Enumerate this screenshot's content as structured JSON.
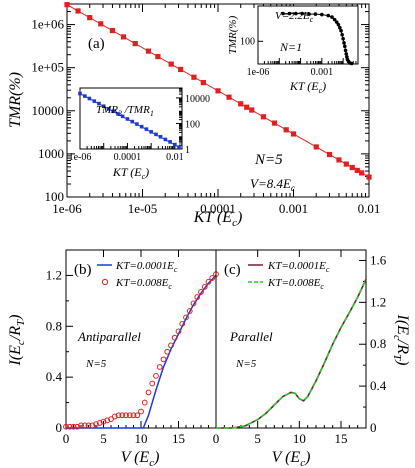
{
  "chart_data": [
    {
      "panel": "(a)",
      "type": "scatter",
      "xscale": "log",
      "yscale": "log",
      "xlim": [
        1e-06,
        0.01
      ],
      "ylim": [
        100,
        3000000
      ],
      "xlabel": "KT (E_c)",
      "ylabel": "TMR(%)",
      "xticks": [
        "1e-06",
        "1e-05",
        "0.0001",
        "0.001",
        "0.01"
      ],
      "yticks": [
        "100",
        "1000",
        "10000",
        "1e+05",
        "1e+06"
      ],
      "annotations": [
        "N=5",
        "V=8.4E_c"
      ],
      "series": [
        {
          "color": "#e02020",
          "line": [
            [
              1e-06,
              2900000
            ],
            [
              0.01,
              290
            ]
          ],
          "points": [
            [
              1e-06,
              2900000
            ],
            [
              1.4e-06,
              2070000
            ],
            [
              2e-06,
              1450000
            ],
            [
              2.8e-06,
              1040000
            ],
            [
              4e-06,
              725000
            ],
            [
              5.6e-06,
              518000
            ],
            [
              8e-06,
              362000
            ],
            [
              1.2e-05,
              242000
            ],
            [
              1.6e-05,
              181000
            ],
            [
              2.4e-05,
              121000
            ],
            [
              3.2e-05,
              91000
            ],
            [
              4.8e-05,
              60000
            ],
            [
              6.4e-05,
              45000
            ],
            [
              0.0001,
              29000
            ],
            [
              0.00014,
              20700
            ],
            [
              0.0002,
              14500
            ],
            [
              0.00024,
              12100
            ],
            [
              0.00028,
              10400
            ],
            [
              0.0004,
              7250
            ],
            [
              0.00056,
              5180
            ],
            [
              0.0008,
              3620
            ],
            [
              0.001,
              2900
            ],
            [
              0.002,
              1450
            ],
            [
              0.003,
              967
            ],
            [
              0.004,
              725
            ],
            [
              0.005,
              580
            ],
            [
              0.006,
              483
            ],
            [
              0.007,
              414
            ],
            [
              0.008,
              362
            ],
            [
              0.01,
              290
            ]
          ]
        }
      ]
    },
    {
      "panel": "inset-left",
      "type": "scatter",
      "xscale": "log",
      "yscale": "log",
      "xlim": [
        1e-06,
        0.02
      ],
      "ylim": [
        1,
        60000
      ],
      "xlabel": "KT (E_c)",
      "ylabel": "TMR_3/TMR_1",
      "xticks": [
        "1e-06",
        "0.0001",
        "0.01"
      ],
      "yticks": [
        "1",
        "100",
        "10000"
      ],
      "series": [
        {
          "color": "#1a3ad8",
          "line": [
            [
              1e-06,
              22000
            ],
            [
              0.015,
              1.4
            ]
          ],
          "points": [
            [
              1e-06,
              22000
            ],
            [
              1.6e-06,
              14000
            ],
            [
              2.5e-06,
              9000
            ],
            [
              4e-06,
              5600
            ],
            [
              6.3e-06,
              3600
            ],
            [
              1e-05,
              2250
            ],
            [
              1.6e-05,
              1400
            ],
            [
              2.5e-05,
              900
            ],
            [
              4e-05,
              560
            ],
            [
              6.3e-05,
              360
            ],
            [
              0.0001,
              225
            ],
            [
              0.00016,
              140
            ],
            [
              0.00025,
              90
            ],
            [
              0.0004,
              56
            ],
            [
              0.00063,
              36
            ],
            [
              0.001,
              22
            ],
            [
              0.0016,
              14
            ],
            [
              0.0025,
              9
            ],
            [
              0.004,
              5.6
            ],
            [
              0.0063,
              3.6
            ],
            [
              0.01,
              2.2
            ],
            [
              0.015,
              1.4
            ]
          ]
        }
      ]
    },
    {
      "panel": "inset-right",
      "type": "line",
      "xscale": "log",
      "xlim": [
        1e-06,
        0.05
      ],
      "ylim": [
        0,
        1.15
      ],
      "xlabel": "KT (E_c)",
      "ylabel": "TMR(%)",
      "xticks": [
        "1e-06",
        "0.001"
      ],
      "yticks": [
        "100"
      ],
      "annotations": [
        "V=2.2E_c",
        "N=1"
      ],
      "series": [
        {
          "color": "#000000",
          "points": [
            [
              1.5e-05,
              1
            ],
            [
              3e-05,
              1
            ],
            [
              6e-05,
              1
            ],
            [
              0.00012,
              1
            ],
            [
              0.00025,
              0.99
            ],
            [
              0.0005,
              0.99
            ],
            [
              0.001,
              0.98
            ],
            [
              0.002,
              0.96
            ],
            [
              0.003,
              0.93
            ],
            [
              0.004,
              0.88
            ],
            [
              0.005,
              0.83
            ],
            [
              0.006,
              0.78
            ],
            [
              0.007,
              0.72
            ],
            [
              0.008,
              0.66
            ],
            [
              0.009,
              0.58
            ],
            [
              0.01,
              0.5
            ],
            [
              0.011,
              0.42
            ],
            [
              0.012,
              0.35
            ],
            [
              0.013,
              0.27
            ],
            [
              0.014,
              0.2
            ],
            [
              0.015,
              0.14
            ],
            [
              0.016,
              0.09
            ],
            [
              0.018,
              0.05
            ],
            [
              0.021,
              0.02
            ],
            [
              0.025,
              0.01
            ]
          ]
        }
      ]
    },
    {
      "panel": "(b)",
      "type": "line",
      "xlim": [
        0,
        20
      ],
      "ylim": [
        0,
        1.4
      ],
      "xlabel": "V (E_c)",
      "ylabel": "I(E_c/R_T)",
      "xticks": [
        "0",
        "5",
        "10",
        "15"
      ],
      "yticks": [
        "0",
        "0.4",
        "0.8",
        "1.2"
      ],
      "annotations": [
        "Antiparallel",
        "N=5"
      ],
      "series": [
        {
          "name": "KT=0.0001E_c",
          "color": "#1a3ad8",
          "style": "line",
          "points": [
            [
              0,
              0
            ],
            [
              10.3,
              0
            ],
            [
              11,
              0.1
            ],
            [
              12,
              0.3
            ],
            [
              13,
              0.48
            ],
            [
              14,
              0.62
            ],
            [
              15,
              0.74
            ],
            [
              16,
              0.86
            ],
            [
              17,
              0.97
            ],
            [
              18,
              1.06
            ],
            [
              19,
              1.14
            ],
            [
              20,
              1.2
            ]
          ]
        },
        {
          "name": "KT=0.008E_c",
          "color": "#e02020",
          "style": "circles",
          "points": [
            [
              0,
              0.01
            ],
            [
              0.5,
              0.01
            ],
            [
              1,
              0.01
            ],
            [
              1.5,
              0.01
            ],
            [
              2,
              0.02
            ],
            [
              2.5,
              0.02
            ],
            [
              3,
              0.02
            ],
            [
              3.5,
              0.02
            ],
            [
              4,
              0.03
            ],
            [
              4.5,
              0.04
            ],
            [
              5,
              0.05
            ],
            [
              5.5,
              0.06
            ],
            [
              6,
              0.07
            ],
            [
              6.5,
              0.09
            ],
            [
              7,
              0.1
            ],
            [
              7.5,
              0.1
            ],
            [
              8,
              0.1
            ],
            [
              8.5,
              0.1
            ],
            [
              9,
              0.1
            ],
            [
              9.5,
              0.1
            ],
            [
              10,
              0.13
            ],
            [
              10.5,
              0.2
            ],
            [
              11,
              0.28
            ],
            [
              11.5,
              0.35
            ],
            [
              12,
              0.41
            ],
            [
              12.5,
              0.48
            ],
            [
              13,
              0.54
            ],
            [
              13.5,
              0.6
            ],
            [
              14,
              0.65
            ],
            [
              14.5,
              0.71
            ],
            [
              15,
              0.76
            ],
            [
              15.5,
              0.82
            ],
            [
              16,
              0.87
            ],
            [
              16.5,
              0.92
            ],
            [
              17,
              0.98
            ],
            [
              17.5,
              1.03
            ],
            [
              18,
              1.07
            ],
            [
              18.5,
              1.11
            ],
            [
              19,
              1.15
            ],
            [
              19.5,
              1.18
            ],
            [
              20,
              1.21
            ]
          ]
        }
      ]
    },
    {
      "panel": "(c)",
      "type": "line",
      "xlim": [
        0,
        18
      ],
      "ylim": [
        0,
        1.7
      ],
      "xlabel": "V (E_c)",
      "ylabel": "I(E_c/R_T)",
      "xticks": [
        "0",
        "5",
        "10",
        "15"
      ],
      "yticks": [
        "0",
        "0.4",
        "0.8",
        "1.2",
        "1.6"
      ],
      "annotations": [
        "Parallel",
        "N=5"
      ],
      "series": [
        {
          "name": "KT=0.0001E_c",
          "color": "#7a1840",
          "style": "line",
          "points": [
            [
              0,
              0
            ],
            [
              2,
              0
            ],
            [
              3.5,
              0.02
            ],
            [
              5,
              0.08
            ],
            [
              6,
              0.14
            ],
            [
              7,
              0.22
            ],
            [
              8,
              0.3
            ],
            [
              9,
              0.34
            ],
            [
              9.5,
              0.33
            ],
            [
              10,
              0.28
            ],
            [
              10.5,
              0.26
            ],
            [
              11,
              0.3
            ],
            [
              12,
              0.45
            ],
            [
              13,
              0.62
            ],
            [
              14,
              0.8
            ],
            [
              15,
              0.96
            ],
            [
              16,
              1.1
            ],
            [
              17,
              1.25
            ],
            [
              18,
              1.42
            ]
          ]
        },
        {
          "name": "KT=0.008E_c",
          "color": "#22cc22",
          "style": "dashed",
          "points": [
            [
              0,
              0
            ],
            [
              2,
              0
            ],
            [
              3.5,
              0.02
            ],
            [
              5,
              0.08
            ],
            [
              6,
              0.14
            ],
            [
              7,
              0.22
            ],
            [
              8,
              0.3
            ],
            [
              9,
              0.34
            ],
            [
              9.5,
              0.33
            ],
            [
              10,
              0.28
            ],
            [
              10.5,
              0.26
            ],
            [
              11,
              0.3
            ],
            [
              12,
              0.45
            ],
            [
              13,
              0.62
            ],
            [
              14,
              0.8
            ],
            [
              15,
              0.96
            ],
            [
              16,
              1.1
            ],
            [
              17,
              1.25
            ],
            [
              18,
              1.42
            ]
          ]
        }
      ]
    }
  ],
  "labels": {
    "a": "(a)",
    "b": "(b)",
    "c": "(c)",
    "a_n": "N=5",
    "a_v_main": "V=8.4E",
    "a_v_sub": "c",
    "a_x_main": "KT (E",
    "a_x_sub": "c",
    "a_x_close": ")",
    "a_y": "TMR(%)",
    "il_y_main": "TMR",
    "il_y_sub3": "3",
    "il_y_slash": " /TMR",
    "il_y_sub1": "1",
    "in_x_main": "KT (E",
    "in_x_sub": "c",
    "in_x_close": ")",
    "ir_y": "TMR(%)",
    "ir_v_main": "V=2.2E",
    "ir_v_sub": "c",
    "ir_n": "N=1",
    "b_legend1_main": "KT=0.0001E",
    "b_legend1_sub": "c",
    "b_legend2_main": "KT=0.008E",
    "b_legend2_sub": "c",
    "b_state": "Antiparallel",
    "b_n": "N=5",
    "c_state": "Parallel",
    "c_n": "N=5",
    "bc_x_main": "V (E",
    "bc_x_sub": "c",
    "bc_x_close": ")",
    "bc_y_main": "I(E",
    "bc_y_sub1": "c",
    "bc_y_mid": "/R",
    "bc_y_sub2": "T",
    "bc_y_close": ")"
  }
}
